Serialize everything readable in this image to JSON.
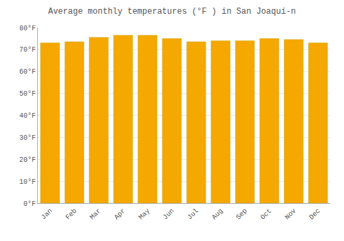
{
  "chart_data": {
    "type": "bar",
    "title": "Average monthly temperatures (°F ) in San Joaquí-n",
    "categories": [
      "Jan",
      "Feb",
      "Mar",
      "Apr",
      "May",
      "Jun",
      "Jul",
      "Aug",
      "Sep",
      "Oct",
      "Nov",
      "Dec"
    ],
    "values": [
      73.0,
      73.5,
      75.5,
      76.5,
      76.5,
      75.0,
      73.5,
      74.0,
      74.0,
      75.0,
      74.5,
      73.0
    ],
    "color": "#F5A800",
    "ylim": [
      0,
      80
    ],
    "yticks": [
      {
        "value": 0,
        "label": "0°F"
      },
      {
        "value": 10,
        "label": "10°F"
      },
      {
        "value": 20,
        "label": "20°F"
      },
      {
        "value": 30,
        "label": "30°F"
      },
      {
        "value": 40,
        "label": "40°F"
      },
      {
        "value": 50,
        "label": "50°F"
      },
      {
        "value": 60,
        "label": "60°F"
      },
      {
        "value": 70,
        "label": "70°F"
      },
      {
        "value": 80,
        "label": "80°F"
      }
    ],
    "grid": true
  }
}
